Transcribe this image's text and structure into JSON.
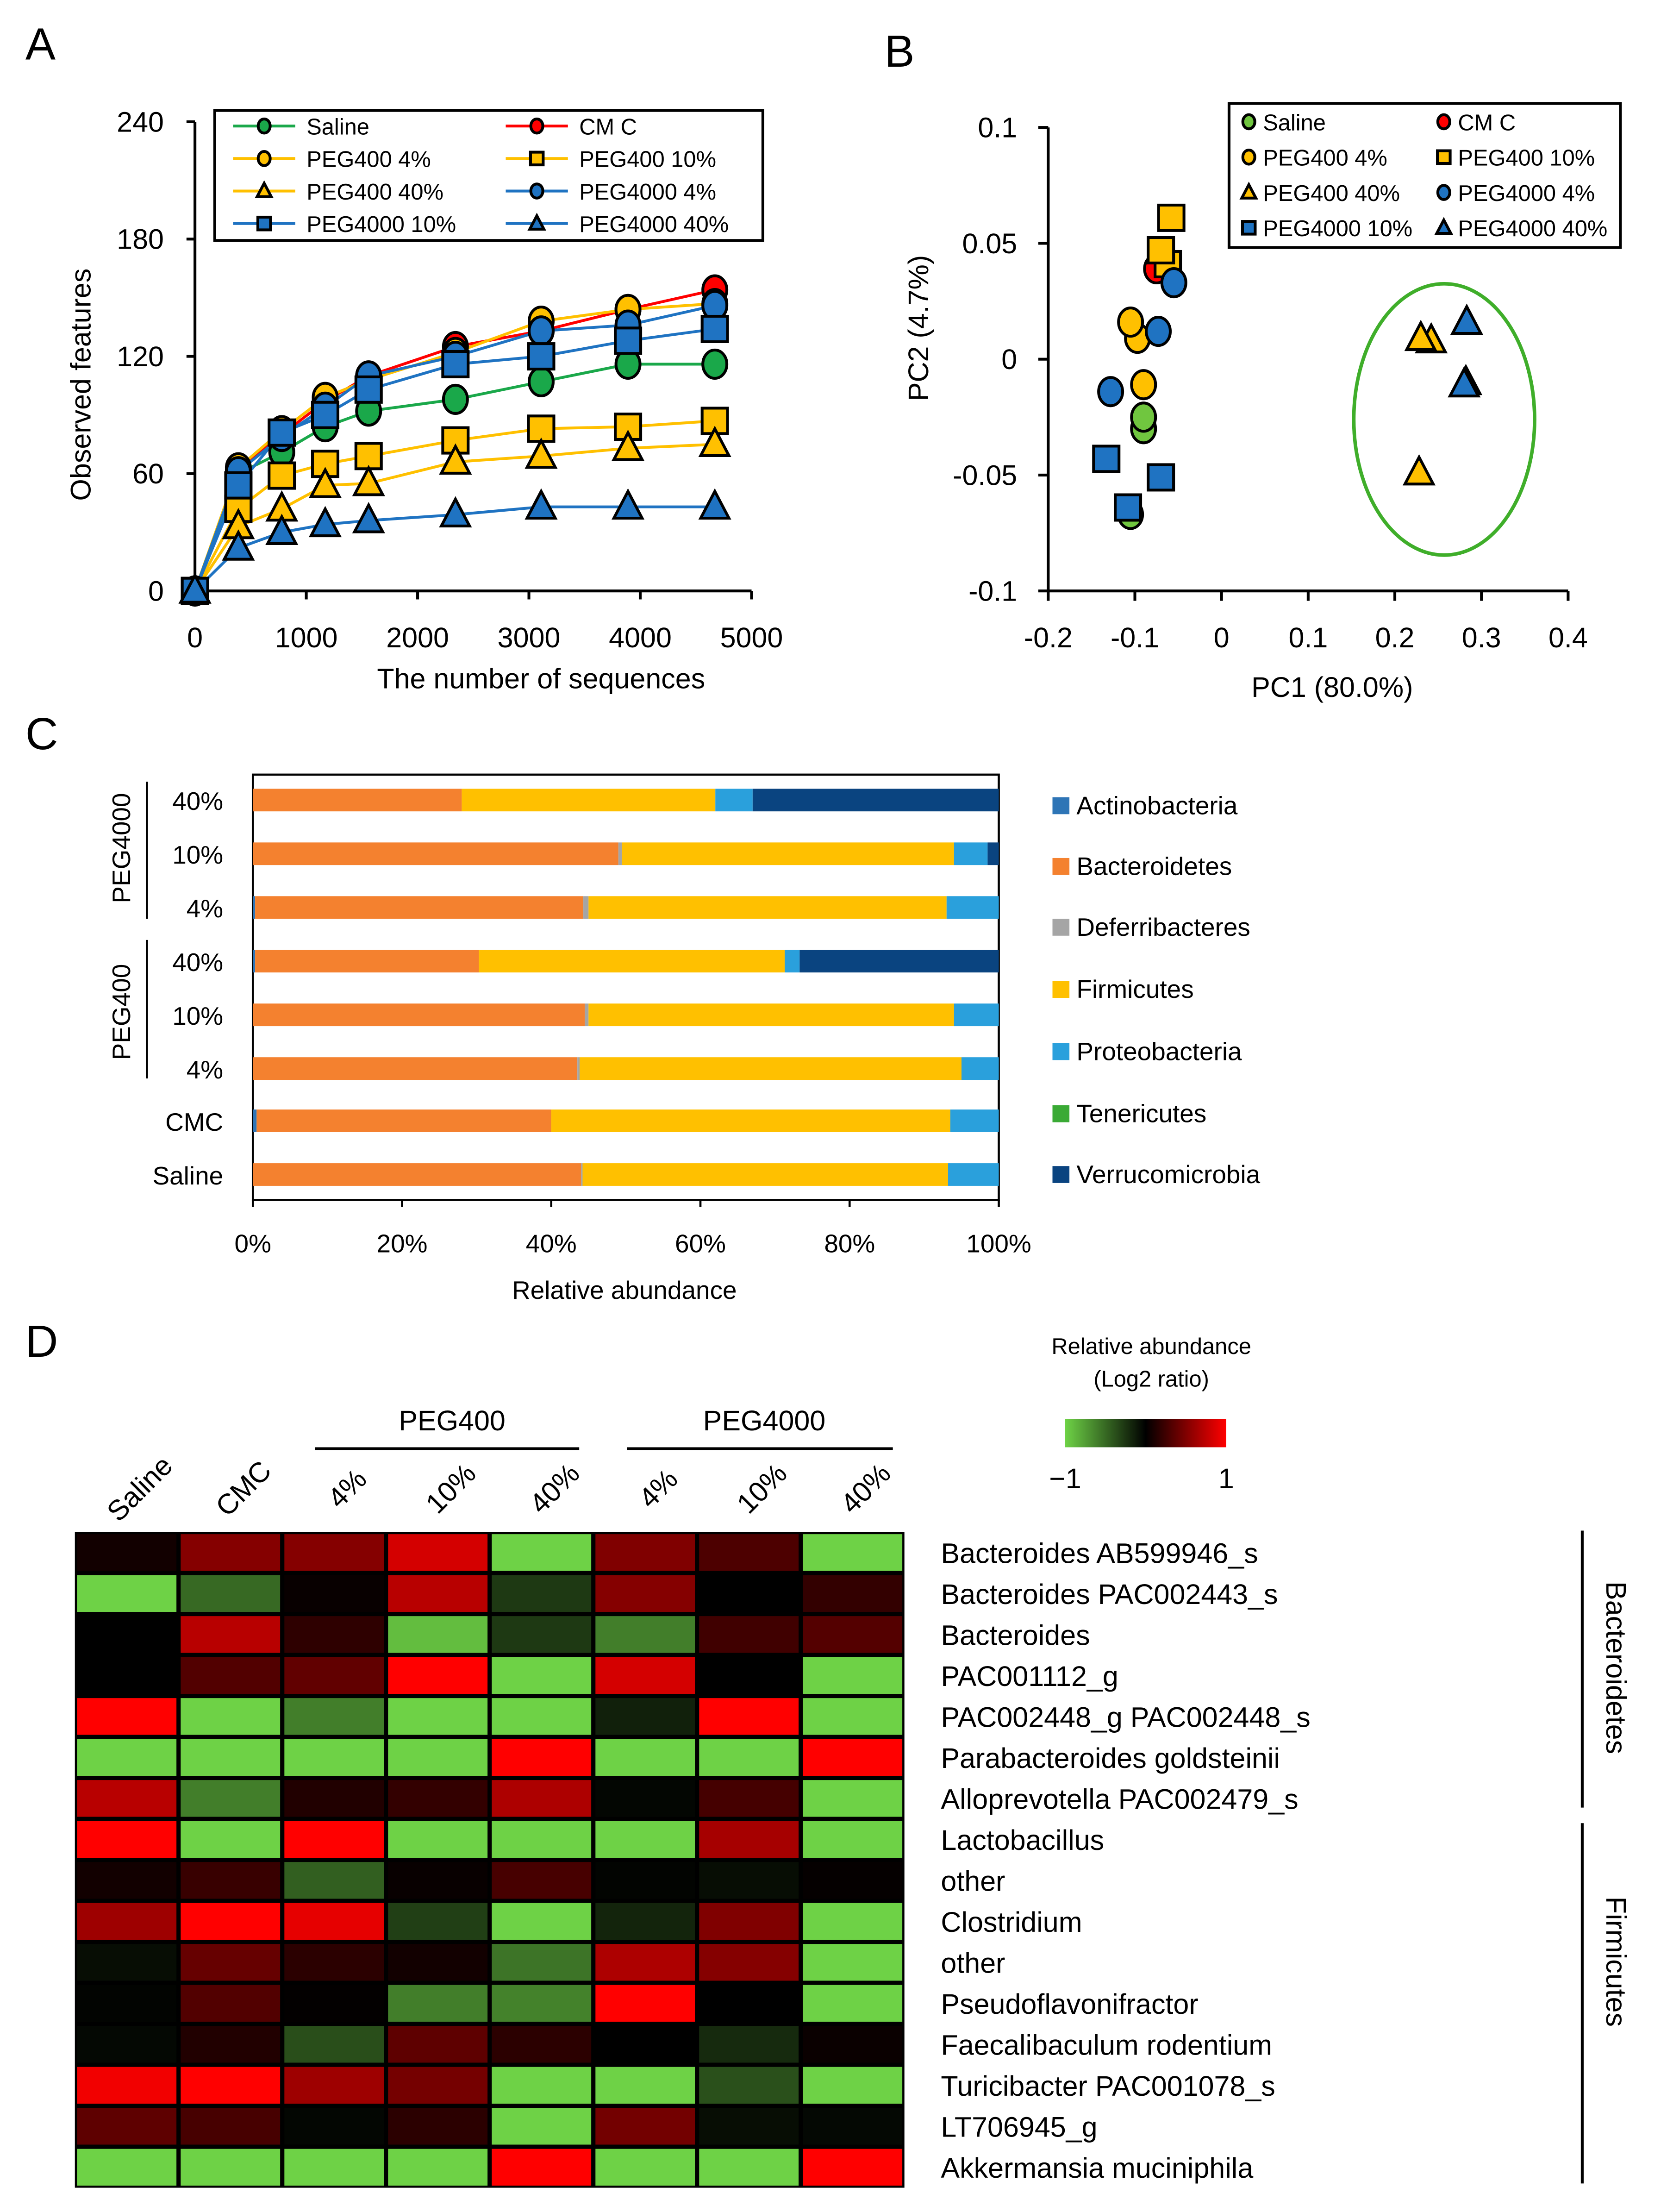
{
  "chart_data": [
    {
      "panel": "A",
      "type": "line",
      "xlabel": "The number of sequences",
      "ylabel": "Observed features",
      "xlim": [
        0,
        5000
      ],
      "ylim": [
        0,
        240
      ],
      "xticks": [
        "0",
        "1000",
        "2000",
        "3000",
        "4000",
        "5000"
      ],
      "yticks": [
        "0",
        "60",
        "120",
        "180",
        "240"
      ],
      "legend_placement": "top",
      "x": [
        0,
        390,
        780,
        1170,
        1560,
        2340,
        3110,
        3890,
        4670
      ],
      "series": [
        {
          "name": "Saline",
          "color": "#1aa84a",
          "marker": "circle",
          "values": [
            0,
            60,
            71,
            84,
            92,
            98,
            107,
            116,
            116
          ]
        },
        {
          "name": "CM C",
          "color": "#ff0000",
          "marker": "circle",
          "values": [
            0,
            62,
            80,
            97,
            110,
            125,
            133,
            144,
            154
          ]
        },
        {
          "name": "PEG400 4%",
          "color": "#ffc000",
          "marker": "circle",
          "values": [
            0,
            63,
            82,
            99,
            108,
            122,
            138,
            144,
            147
          ]
        },
        {
          "name": "PEG400 10%",
          "color": "#ffc000",
          "marker": "square",
          "values": [
            0,
            42,
            59,
            65,
            69,
            77,
            83,
            84,
            87
          ]
        },
        {
          "name": "PEG400 40%",
          "color": "#ffc000",
          "marker": "triangle",
          "values": [
            0,
            33,
            42,
            54,
            55,
            66,
            69,
            73,
            75
          ]
        },
        {
          "name": "PEG4000 4%",
          "color": "#1f73c2",
          "marker": "circle",
          "values": [
            0,
            61,
            79,
            94,
            110,
            120,
            133,
            136,
            146
          ]
        },
        {
          "name": "PEG4000 10%",
          "color": "#1f73c2",
          "marker": "square",
          "values": [
            0,
            54,
            81,
            90,
            103,
            116,
            120,
            128,
            134
          ]
        },
        {
          "name": "PEG4000 40%",
          "color": "#1f73c2",
          "marker": "triangle",
          "values": [
            0,
            22,
            30,
            34,
            36,
            39,
            43,
            43,
            43
          ]
        }
      ]
    },
    {
      "panel": "B",
      "type": "scatter",
      "xlabel": "PC1 (80.0%)",
      "ylabel": "PC2 (4.7%)",
      "xlim": [
        -0.2,
        0.4
      ],
      "ylim": [
        -0.1,
        0.1
      ],
      "xticks": [
        "-0.2",
        "-0.1",
        "0",
        "0.1",
        "0.2",
        "0.3",
        "0.4"
      ],
      "yticks": [
        "-0.1",
        "-0.05",
        "0",
        "0.05",
        "0.1"
      ],
      "legend_placement": "top-right",
      "series": [
        {
          "name": "Saline",
          "color": "#70c63f",
          "marker": "circle",
          "points": [
            [
              -0.09,
              -0.03
            ],
            [
              -0.09,
              -0.025
            ],
            [
              -0.105,
              -0.067
            ]
          ]
        },
        {
          "name": "CM C",
          "color": "#ff0000",
          "marker": "circle",
          "points": [
            [
              -0.075,
              0.039
            ]
          ]
        },
        {
          "name": "PEG400 4%",
          "color": "#ffc000",
          "marker": "circle",
          "points": [
            [
              -0.097,
              0.009
            ],
            [
              -0.105,
              0.016
            ],
            [
              -0.09,
              -0.011
            ]
          ]
        },
        {
          "name": "PEG400 10%",
          "color": "#ffc000",
          "marker": "square",
          "points": [
            [
              -0.062,
              0.041
            ],
            [
              -0.07,
              0.047
            ],
            [
              -0.058,
              0.061
            ]
          ]
        },
        {
          "name": "PEG400 40%",
          "color": "#ffc000",
          "marker": "triangle",
          "points": [
            [
              0.242,
              0.008
            ],
            [
              0.23,
              0.009
            ],
            [
              0.228,
              -0.049
            ]
          ]
        },
        {
          "name": "PEG4000 4%",
          "color": "#1f73c2",
          "marker": "circle",
          "points": [
            [
              -0.055,
              0.033
            ],
            [
              -0.073,
              0.012
            ],
            [
              -0.128,
              -0.014
            ]
          ]
        },
        {
          "name": "PEG4000 10%",
          "color": "#1f73c2",
          "marker": "square",
          "points": [
            [
              -0.133,
              -0.043
            ],
            [
              -0.108,
              -0.064
            ],
            [
              -0.07,
              -0.051
            ]
          ]
        },
        {
          "name": "PEG4000 40%",
          "color": "#1f73c2",
          "marker": "triangle",
          "points": [
            [
              0.283,
              0.016
            ],
            [
              0.282,
              -0.01
            ],
            [
              0.28,
              -0.011
            ]
          ]
        }
      ]
    },
    {
      "panel": "C",
      "type": "bar",
      "orientation": "horizontal-stacked",
      "xlabel": "Relative abundance",
      "xlim": [
        0,
        100
      ],
      "xticks": [
        "0%",
        "20%",
        "40%",
        "60%",
        "80%",
        "100%"
      ],
      "legend_placement": "right",
      "categories": [
        "40%",
        "10%",
        "4%",
        "40%",
        "10%",
        "4%",
        "CMC",
        "Saline"
      ],
      "groups": [
        {
          "name": "PEG4000",
          "members": [
            0,
            1,
            2
          ]
        },
        {
          "name": "PEG400",
          "members": [
            3,
            4,
            5
          ]
        }
      ],
      "series": [
        {
          "name": "Actinobacteria",
          "color": "#2e75b6",
          "values": [
            0,
            0,
            0.3,
            0.3,
            0,
            0,
            0.5,
            0
          ]
        },
        {
          "name": "Bacteroidetes",
          "color": "#f4812f",
          "values": [
            28,
            49,
            44,
            30,
            44.5,
            43.5,
            39.5,
            44
          ]
        },
        {
          "name": "Deferribacteres",
          "color": "#a5a5a5",
          "values": [
            0,
            0.5,
            0.7,
            0,
            0.5,
            0.3,
            0,
            0.2
          ]
        },
        {
          "name": "Firmicutes",
          "color": "#ffc000",
          "values": [
            34,
            44.5,
            48,
            41,
            49,
            51.2,
            53.5,
            49
          ]
        },
        {
          "name": "Proteobacteria",
          "color": "#2aa0dc",
          "values": [
            5,
            4.5,
            7,
            2,
            6,
            5,
            6.5,
            6.8
          ]
        },
        {
          "name": "Tenericutes",
          "color": "#3aaa35",
          "values": [
            0,
            0,
            0,
            0,
            0,
            0,
            0,
            0
          ]
        },
        {
          "name": "Verrucomicrobia",
          "color": "#0a4480",
          "values": [
            33,
            1.5,
            0,
            26.7,
            0,
            0,
            0,
            0
          ]
        }
      ]
    },
    {
      "panel": "D",
      "type": "heatmap",
      "colorbar_title": "Relative abundance",
      "colorbar_subtitle": "(Log2 ratio)",
      "colorbar_min_label": "−1",
      "colorbar_max_label": "1",
      "zlim": [
        -1,
        1
      ],
      "low_color": "#6ed246",
      "mid_color": "#000000",
      "high_color": "#ff0000",
      "column_groups": [
        {
          "name": "PEG400"
        },
        {
          "name": "PEG4000"
        }
      ],
      "columns": [
        "Saline",
        "CMC",
        "4%",
        "10%",
        "40%",
        "4%",
        "10%",
        "40%"
      ],
      "rows": [
        "Bacteroides AB599946_s",
        "Bacteroides PAC002443_s",
        "Bacteroides",
        "PAC001112_g",
        "PAC002448_g PAC002448_s",
        "Parabacteroides goldsteinii",
        "Alloprevotella PAC002479_s",
        "Lactobacillus",
        "other",
        "Clostridium",
        "other",
        "Pseudoflavonifractor",
        "Faecalibaculum rodentium",
        "Turicibacter PAC001078_s",
        "LT706945_g",
        "Akkermansia muciniphila"
      ],
      "row_groups": [
        {
          "name": "Bacteroidetes"
        },
        {
          "name": "Firmicutes"
        }
      ],
      "values": [
        [
          0.07,
          0.52,
          0.52,
          0.83,
          -1,
          0.5,
          0.3,
          -1
        ],
        [
          -1,
          -0.5,
          0.03,
          0.72,
          -0.27,
          0.52,
          0,
          0.2
        ],
        [
          0,
          0.72,
          0.18,
          -0.9,
          -0.27,
          -0.6,
          0.25,
          0.33
        ],
        [
          0,
          0.32,
          0.38,
          1,
          -1,
          0.83,
          0,
          -1
        ],
        [
          1,
          -1,
          -0.6,
          -1,
          -1,
          -0.15,
          1,
          -1
        ],
        [
          -1,
          -1,
          -1,
          -1,
          1,
          -1,
          -1,
          1
        ],
        [
          0.72,
          -0.6,
          0.13,
          0.2,
          0.68,
          -0.03,
          0.27,
          -1
        ],
        [
          1,
          -1,
          1,
          -1,
          -1,
          -1,
          0.65,
          -1
        ],
        [
          0.07,
          0.22,
          -0.45,
          0.03,
          0.28,
          -0.02,
          -0.06,
          0.02
        ],
        [
          0.62,
          1,
          0.9,
          -0.3,
          -1,
          -0.17,
          0.5,
          -1
        ],
        [
          -0.06,
          0.4,
          0.17,
          0.07,
          -0.55,
          0.68,
          0.52,
          -1
        ],
        [
          -0.02,
          0.32,
          0.01,
          -0.6,
          -0.62,
          1,
          0,
          -1
        ],
        [
          -0.04,
          0.13,
          -0.37,
          0.37,
          0.17,
          0,
          -0.2,
          0.04
        ],
        [
          0.95,
          1,
          0.62,
          0.46,
          -1,
          -1,
          -0.38,
          -1
        ],
        [
          0.37,
          0.28,
          -0.03,
          0.17,
          -1,
          0.45,
          -0.06,
          -0.04
        ],
        [
          -1,
          -1,
          -1,
          -1,
          1,
          -1,
          -1,
          1
        ]
      ]
    }
  ],
  "panel_labels": [
    "A",
    "B",
    "C",
    "D"
  ]
}
